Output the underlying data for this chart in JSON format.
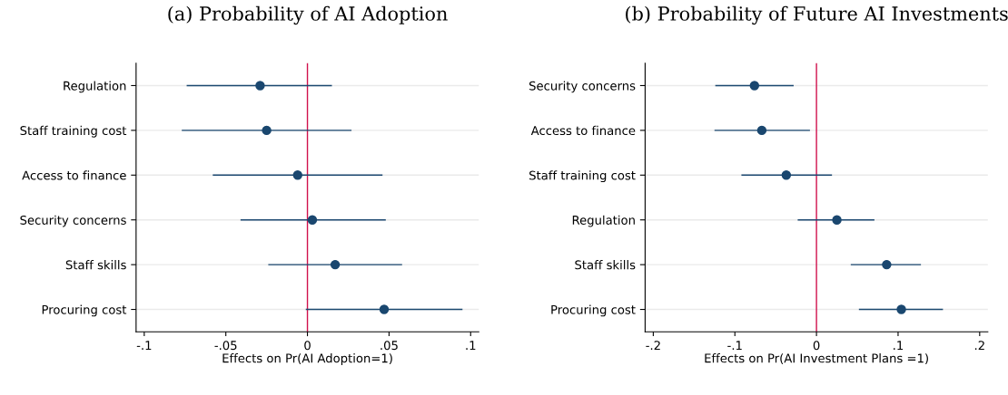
{
  "chart_data": [
    {
      "type": "scatter",
      "orientation": "horizontal",
      "title": "(a) Probability of AI Adoption",
      "xlabel": "Effects on Pr(AI Adoption=1)",
      "categories": [
        "Regulation",
        "Staff training cost",
        "Access to finance",
        "Security concerns",
        "Staff skills",
        "Procuring cost"
      ],
      "series": [
        {
          "color": "#1a476f",
          "values": [
            -0.029,
            -0.025,
            -0.006,
            0.003,
            0.017,
            0.047
          ],
          "errors": [
            [
              -0.074,
              0.015
            ],
            [
              -0.077,
              0.027
            ],
            [
              -0.058,
              0.046
            ],
            [
              -0.041,
              0.048
            ],
            [
              -0.024,
              0.058
            ],
            [
              -0.001,
              0.095
            ]
          ]
        }
      ],
      "xlim": [
        -0.105,
        0.105
      ],
      "xticks": [
        {
          "value": -0.1,
          "label": "-.1"
        },
        {
          "value": -0.05,
          "label": "-.05"
        },
        {
          "value": 0,
          "label": "0"
        },
        {
          "value": 0.05,
          "label": ".05"
        },
        {
          "value": 0.1,
          "label": ".1"
        }
      ],
      "ref_lines": [
        {
          "axis": "x",
          "value": 0,
          "color": "#d0104c"
        }
      ],
      "grid": "y",
      "marker": "circle"
    },
    {
      "type": "scatter",
      "orientation": "horizontal",
      "title": "(b) Probability of Future AI Investments",
      "xlabel": "Effects on Pr(AI Investment Plans =1)",
      "categories": [
        "Security concerns",
        "Access to finance",
        "Staff training cost",
        "Regulation",
        "Staff skills",
        "Procuring cost"
      ],
      "series": [
        {
          "color": "#1a476f",
          "values": [
            -0.076,
            -0.067,
            -0.037,
            0.025,
            0.086,
            0.104
          ],
          "errors": [
            [
              -0.124,
              -0.028
            ],
            [
              -0.125,
              -0.008
            ],
            [
              -0.092,
              0.019
            ],
            [
              -0.023,
              0.071
            ],
            [
              0.042,
              0.128
            ],
            [
              0.052,
              0.155
            ]
          ]
        }
      ],
      "xlim": [
        -0.21,
        0.21
      ],
      "xticks": [
        {
          "value": -0.2,
          "label": "-.2"
        },
        {
          "value": -0.1,
          "label": "-.1"
        },
        {
          "value": 0,
          "label": "0"
        },
        {
          "value": 0.1,
          "label": ".1"
        },
        {
          "value": 0.2,
          "label": ".2"
        }
      ],
      "ref_lines": [
        {
          "axis": "x",
          "value": 0,
          "color": "#d0104c"
        }
      ],
      "grid": "y",
      "marker": "circle"
    }
  ]
}
